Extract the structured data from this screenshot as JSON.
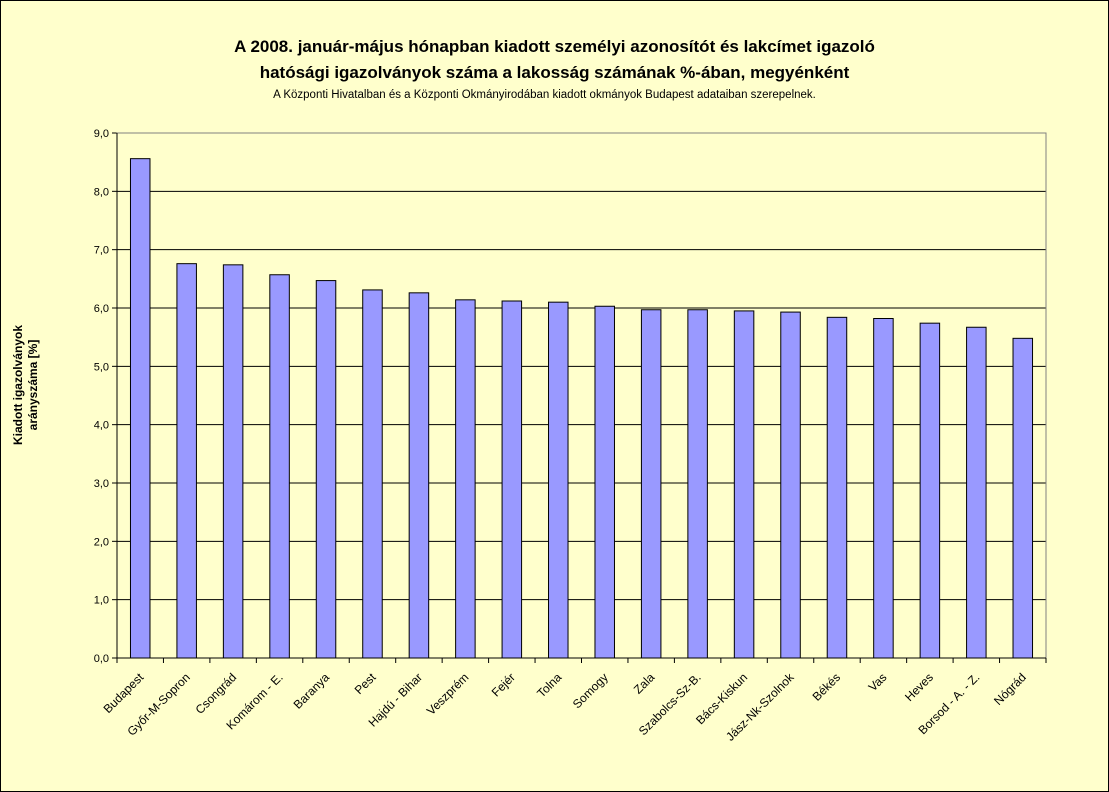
{
  "chart_data": {
    "type": "bar",
    "title_line1": "A 2008. január-május hónapban kiadott személyi azonosítót és lakcímet igazoló",
    "title_line2": "hatósági igazolványok száma a lakosság  számának %-ában, megyénként",
    "subtitle": "A Központi Hivatalban és a Központi Okmányirodában kiadott okmányok Budapest adataiban szerepelnek.",
    "ylabel_line1": "Kiadott igazolványok",
    "ylabel_line2": "arányszáma [%]",
    "xlabel": "",
    "ylim": [
      0,
      9
    ],
    "ytick_step": 1,
    "ytick_labels": [
      "0,0",
      "1,0",
      "2,0",
      "3,0",
      "4,0",
      "5,0",
      "6,0",
      "7,0",
      "8,0",
      "9,0"
    ],
    "grid": true,
    "bar_color": "#9999ff",
    "plot_background": "#ffffcc",
    "categories": [
      "Budapest",
      "Győr-M-Sopron",
      "Csongrád",
      "Komárom - E.",
      "Baranya",
      "Pest",
      "Hajdú - Bihar",
      "Veszprém",
      "Fejér",
      "Tolna",
      "Somogy",
      "Zala",
      "Szabolcs-Sz-B.",
      "Bács-Kiskun",
      "Jász-Nk-Szolnok",
      "Békés",
      "Vas",
      "Heves",
      "Borsod - A. - Z.",
      "Nógrád"
    ],
    "values": [
      8.56,
      6.76,
      6.74,
      6.57,
      6.47,
      6.31,
      6.26,
      6.14,
      6.12,
      6.1,
      6.03,
      5.97,
      5.97,
      5.95,
      5.93,
      5.84,
      5.82,
      5.74,
      5.67,
      5.48
    ]
  }
}
